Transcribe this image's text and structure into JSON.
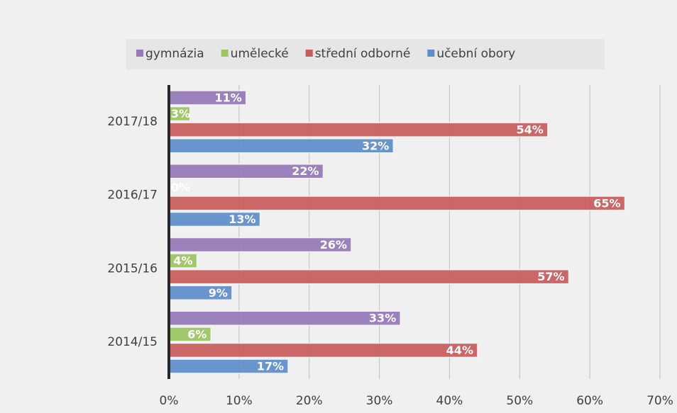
{
  "chart_data": {
    "type": "bar",
    "orientation": "horizontal",
    "categories": [
      "2014/15",
      "2015/16",
      "2016/17",
      "2017/18"
    ],
    "series": [
      {
        "name": "gymnázia",
        "color": "#9579b8",
        "values": [
          33,
          26,
          22,
          11
        ],
        "value_labels": [
          "33%",
          "26%",
          "22%",
          "11%"
        ]
      },
      {
        "name": "umělecké",
        "color": "#9cc563",
        "values": [
          6,
          4,
          0,
          3
        ],
        "value_labels": [
          "6%",
          "4%",
          "0%",
          "3%"
        ]
      },
      {
        "name": "střední odborné",
        "color": "#c95c5c",
        "values": [
          44,
          57,
          65,
          54
        ],
        "value_labels": [
          "44%",
          "57%",
          "65%",
          "54%"
        ]
      },
      {
        "name": "učební obory",
        "color": "#5d8ecb",
        "values": [
          17,
          9,
          13,
          32
        ],
        "value_labels": [
          "17%",
          "9%",
          "13%",
          "32%"
        ]
      }
    ],
    "xlim": [
      0,
      70
    ],
    "xticks": [
      {
        "value": 0,
        "label": "0%"
      },
      {
        "value": 10,
        "label": "10%"
      },
      {
        "value": 20,
        "label": "20%"
      },
      {
        "value": 30,
        "label": "30%"
      },
      {
        "value": 40,
        "label": "40%"
      },
      {
        "value": 50,
        "label": "50%"
      },
      {
        "value": 60,
        "label": "60%"
      },
      {
        "value": 70,
        "label": "70%"
      }
    ],
    "grid": true,
    "legend": "top"
  }
}
